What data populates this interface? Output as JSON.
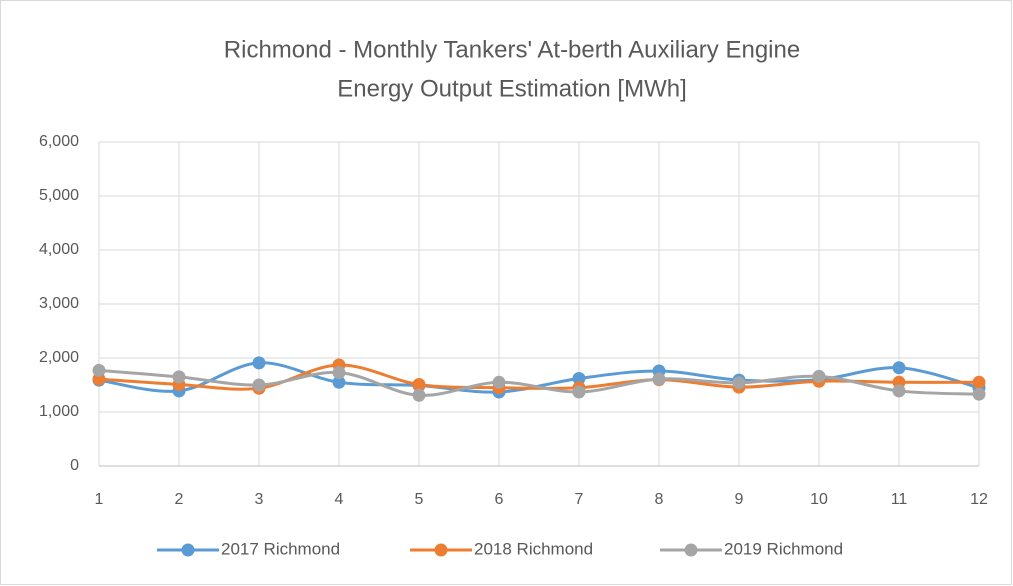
{
  "chart_data": {
    "type": "line",
    "title": [
      "Richmond - Monthly Tankers' At-berth Auxiliary Engine",
      "Energy Output Estimation [MWh]"
    ],
    "x": [
      1,
      2,
      3,
      4,
      5,
      6,
      7,
      8,
      9,
      10,
      11,
      12
    ],
    "xlim": [
      1,
      12
    ],
    "xticks": [
      1,
      2,
      3,
      4,
      5,
      6,
      7,
      8,
      9,
      10,
      11,
      12
    ],
    "ylim": [
      0,
      6000
    ],
    "yticks": [
      0,
      {
        "value": 1000,
        "label": "1,000"
      },
      {
        "value": 2000,
        "label": "2,000"
      },
      {
        "value": 3000,
        "label": "3,000"
      },
      {
        "value": 4000,
        "label": "4,000"
      },
      {
        "value": 5000,
        "label": "5,000"
      },
      {
        "value": 6000,
        "label": "6,000"
      }
    ],
    "grid": true,
    "smooth": true,
    "legend": "bottom",
    "series": [
      {
        "name": "2017 Richmond",
        "color": "#5b9bd5",
        "values": [
          1590,
          1390,
          1910,
          1550,
          1490,
          1370,
          1620,
          1760,
          1590,
          1600,
          1820,
          1450
        ]
      },
      {
        "name": "2018 Richmond",
        "color": "#ed7d31",
        "values": [
          1610,
          1510,
          1440,
          1870,
          1510,
          1450,
          1450,
          1600,
          1460,
          1570,
          1550,
          1550
        ]
      },
      {
        "name": "2019 Richmond",
        "color": "#a5a5a5",
        "values": [
          1770,
          1650,
          1500,
          1730,
          1310,
          1550,
          1370,
          1610,
          1540,
          1660,
          1390,
          1330
        ]
      }
    ]
  }
}
